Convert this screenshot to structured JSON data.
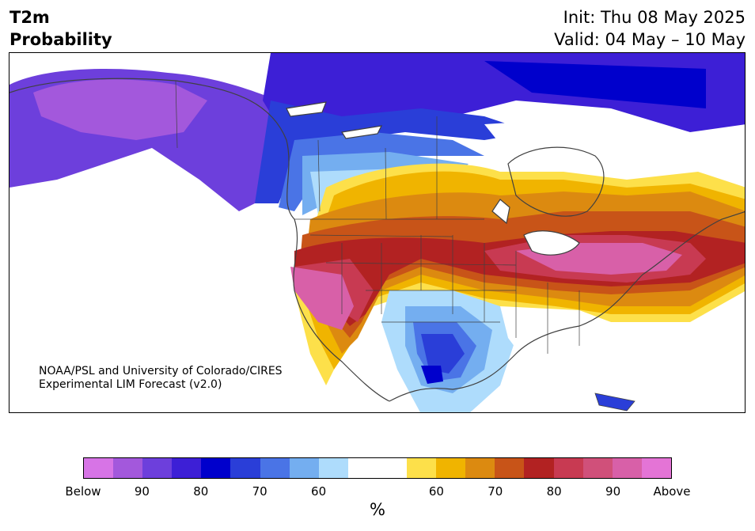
{
  "title": {
    "line1": "T2m",
    "line2": "Probability"
  },
  "init": {
    "line1": "Init: Thu 08 May 2025",
    "line2": "Valid: 04 May – 10 May"
  },
  "credit": {
    "line1": "NOAA/PSL and University of Colorado/CIRES",
    "line2": "Experimental LIM Forecast (v2.0)"
  },
  "colorbar": {
    "unit": "%",
    "colors": [
      "#d774e6",
      "#a358dc",
      "#6d3fdc",
      "#3d1fd6",
      "#0000cc",
      "#2a3ed8",
      "#4a74e6",
      "#74aef0",
      "#aedcfc",
      "#ffffff",
      "#ffffff",
      "#fde04a",
      "#f0b400",
      "#dc8a10",
      "#c85418",
      "#b22222",
      "#c83a52",
      "#d0507a",
      "#d860a8",
      "#e474d6"
    ],
    "ticks": [
      "Below",
      "90",
      "80",
      "70",
      "60",
      "60",
      "70",
      "80",
      "90",
      "Above"
    ]
  },
  "colors": {
    "coast": "#404040",
    "white_zone": "#ffffff"
  }
}
